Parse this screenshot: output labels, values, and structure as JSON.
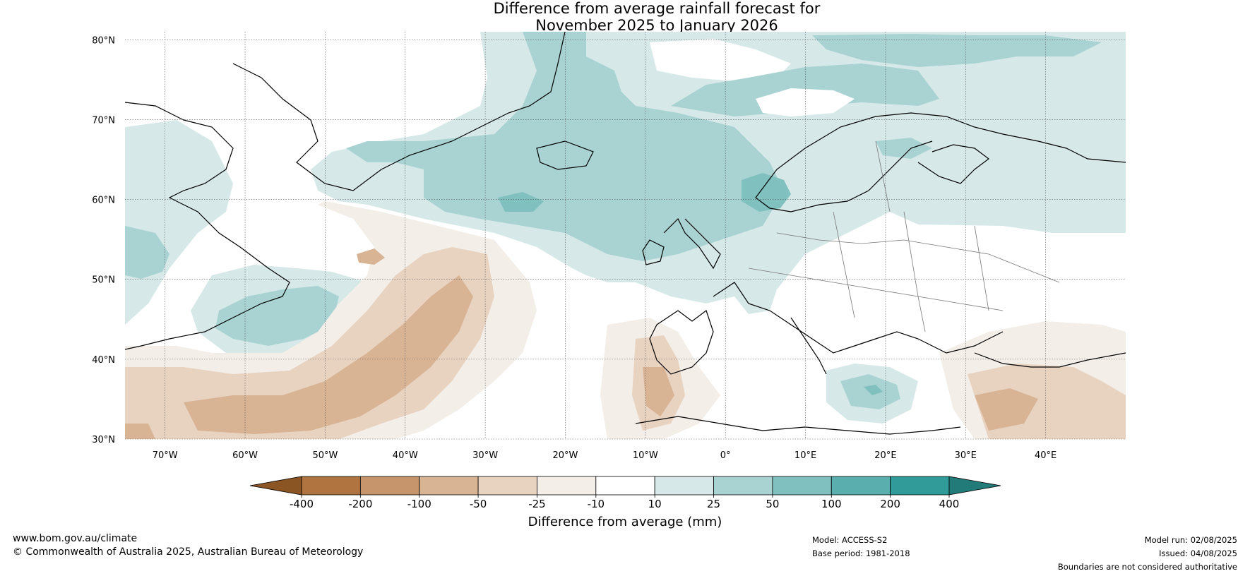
{
  "title": {
    "line1": "Difference from average rainfall forecast for",
    "line2": "November 2025 to January 2026"
  },
  "map": {
    "lat_labels": [
      "80°N",
      "70°N",
      "60°N",
      "50°N",
      "40°N",
      "30°N"
    ],
    "lon_labels": [
      "70°W",
      "60°W",
      "50°W",
      "40°W",
      "30°W",
      "20°W",
      "10°W",
      "0°",
      "10°E",
      "20°E",
      "30°E",
      "40°E"
    ]
  },
  "legend": {
    "ticks": [
      "-400",
      "-200",
      "-100",
      "-50",
      "-25",
      "-10",
      "10",
      "25",
      "50",
      "100",
      "200",
      "400"
    ],
    "colors": [
      "#8b5423",
      "#b07441",
      "#c7956b",
      "#d8b394",
      "#e8d2c0",
      "#f3eee8",
      "#ffffff",
      "#d6e9e8",
      "#a9d3d3",
      "#80c0bf",
      "#5aaeae",
      "#319b9a",
      "#227a79"
    ],
    "label": "Difference from average (mm)"
  },
  "footer": {
    "website": "www.bom.gov.au/climate",
    "copyright": "© Commonwealth of Australia 2025, Australian Bureau of Meteorology",
    "model": "Model: ACCESS-S2",
    "base_period": "Base period: 1981-2018",
    "model_run": "Model run: 02/08/2025",
    "issued": "Issued: 04/08/2025",
    "disclaimer": "Boundaries are not considered authoritative"
  }
}
